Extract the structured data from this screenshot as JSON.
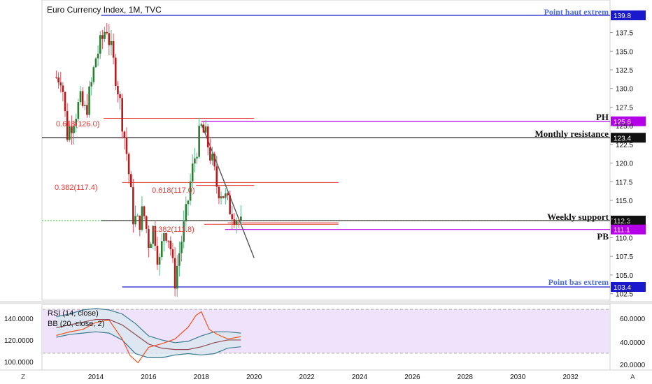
{
  "title": "Euro Currency Index, 1M, TVC",
  "colors": {
    "up": "#53b987",
    "down": "#eb4d5c",
    "candle_body_up": "#2e7d32",
    "candle_body_down": "#b71c1c",
    "extreme_line": "#1a1acc",
    "ph_pb_line": "#b400e6",
    "fib_line": "#e53935",
    "resistance_line": "#222222",
    "support_line": "#33cc33",
    "trendline": "#555555",
    "rsi_bg": "#efe3fb",
    "rsi_line": "#f4511e",
    "bb_basis": "#8d4b57",
    "bb_band": "#3b7a8f",
    "bb_fill": "#d9e6ef"
  },
  "annotations": {
    "point_haut": "Point haut extrem",
    "point_bas": "Point bas extrem",
    "ph": "PH",
    "pb": "PB",
    "monthly_resistance": "Monthly resistance",
    "weekly_support": "Weekly support",
    "fib_1": "0.618(126.0)",
    "fib_2": "0.382(117.4)",
    "fib_3": "0.618(117.0)",
    "fib_4": "0.382(111.8)"
  },
  "price_badges": [
    "139.8",
    "125.6",
    "123.4",
    "112.3",
    "111.1",
    "103.4"
  ],
  "price_axis_ticks": [
    "137.5",
    "135.0",
    "132.5",
    "130.0",
    "127.5",
    "125.0",
    "122.5",
    "120.0",
    "117.5",
    "115.0",
    "112.5",
    "110.0",
    "107.5",
    "105.0",
    "102.5"
  ],
  "x_axis_ticks": [
    "2014",
    "2016",
    "2018",
    "2020",
    "2022",
    "2024",
    "2026",
    "2028",
    "2030",
    "2032"
  ],
  "rsi_panel": {
    "rsi_label": "RSI (14, close)",
    "bb_label": "BB (20, close, 2)",
    "left_ticks": [
      "140.0000",
      "120.0000",
      "100.0000"
    ],
    "right_ticks": [
      "60.0000",
      "40.0000",
      "20.0000"
    ]
  },
  "corner_left": "Z",
  "corner_right": "A",
  "chart_data": {
    "type": "candlestick",
    "title": "Euro Currency Index, 1M, TVC",
    "x_range": [
      2012.4,
      2035.0
    ],
    "y_range": [
      101.5,
      141.5
    ],
    "close_path": [
      [
        2012.5,
        131.5
      ],
      [
        2012.7,
        131.8
      ],
      [
        2012.9,
        123.8
      ],
      [
        2013.0,
        124.7
      ],
      [
        2013.2,
        126.5
      ],
      [
        2013.4,
        128.2
      ],
      [
        2013.6,
        126.8
      ],
      [
        2013.8,
        129.8
      ],
      [
        2014.0,
        134.2
      ],
      [
        2014.2,
        136.0
      ],
      [
        2014.4,
        138.6
      ],
      [
        2014.6,
        134.5
      ],
      [
        2014.8,
        131.0
      ],
      [
        2015.0,
        125.8
      ],
      [
        2015.2,
        120.5
      ],
      [
        2015.4,
        113.0
      ],
      [
        2015.6,
        111.8
      ],
      [
        2015.8,
        113.6
      ],
      [
        2016.0,
        109.5
      ],
      [
        2016.2,
        111.5
      ],
      [
        2016.4,
        106.2
      ],
      [
        2016.6,
        111.5
      ],
      [
        2016.8,
        109.8
      ],
      [
        2016.9,
        106.3
      ],
      [
        2017.0,
        104.4
      ],
      [
        2017.2,
        108.8
      ],
      [
        2017.4,
        112.5
      ],
      [
        2017.6,
        117.8
      ],
      [
        2017.8,
        121.8
      ],
      [
        2018.0,
        124.6
      ],
      [
        2018.2,
        123.2
      ],
      [
        2018.4,
        120.2
      ],
      [
        2018.6,
        116.8
      ],
      [
        2018.8,
        116.2
      ],
      [
        2019.0,
        114.4
      ],
      [
        2019.2,
        113.5
      ],
      [
        2019.4,
        112.5
      ],
      [
        2019.5,
        111.6
      ]
    ],
    "horizontal_levels": [
      {
        "label": "Point haut extrem",
        "value": 139.8
      },
      {
        "label": "PH",
        "value": 125.6
      },
      {
        "label": "Monthly resistance",
        "value": 123.4
      },
      {
        "label": "Weekly support",
        "value": 112.3
      },
      {
        "label": "PB",
        "value": 111.1
      },
      {
        "label": "Point bas extrem",
        "value": 103.4
      }
    ],
    "fibonacci_levels": [
      {
        "label": "0.618(126.0)",
        "value": 126.0
      },
      {
        "label": "0.382(117.4)",
        "value": 117.4
      },
      {
        "label": "0.618(117.0)",
        "value": 117.0
      },
      {
        "label": "0.382(111.8)",
        "value": 111.8
      }
    ],
    "trendline": [
      [
        2018.0,
        125.3
      ],
      [
        2020.0,
        107.3
      ]
    ],
    "rsi": {
      "x": [
        2012.5,
        2013.0,
        2013.5,
        2014.0,
        2014.5,
        2015.0,
        2015.3,
        2015.6,
        2016.0,
        2016.5,
        2017.0,
        2017.5,
        2017.8,
        2018.0,
        2018.3,
        2018.6,
        2019.0,
        2019.5
      ],
      "values": [
        45,
        48,
        50,
        56,
        58,
        42,
        28,
        22,
        35,
        38,
        42,
        52,
        62,
        65,
        50,
        46,
        42,
        44
      ],
      "range": [
        17,
        70
      ]
    },
    "bb": {
      "x": [
        2012.5,
        2013.0,
        2013.5,
        2014.0,
        2014.5,
        2015.0,
        2015.5,
        2016.0,
        2016.5,
        2017.0,
        2017.5,
        2018.0,
        2018.5,
        2019.0,
        2019.5
      ],
      "basis": [
        127,
        129,
        131,
        133,
        133,
        129,
        122,
        115,
        112,
        111,
        111,
        113,
        116,
        118,
        118
      ],
      "upper": [
        135,
        137,
        140,
        141,
        140,
        137,
        130,
        121,
        118,
        116,
        117,
        121,
        124,
        124,
        123
      ],
      "lower": [
        120,
        122,
        123,
        124,
        123,
        118,
        108,
        105,
        105,
        107,
        108,
        107,
        108,
        112,
        113
      ],
      "range": [
        97,
        143
      ]
    }
  }
}
